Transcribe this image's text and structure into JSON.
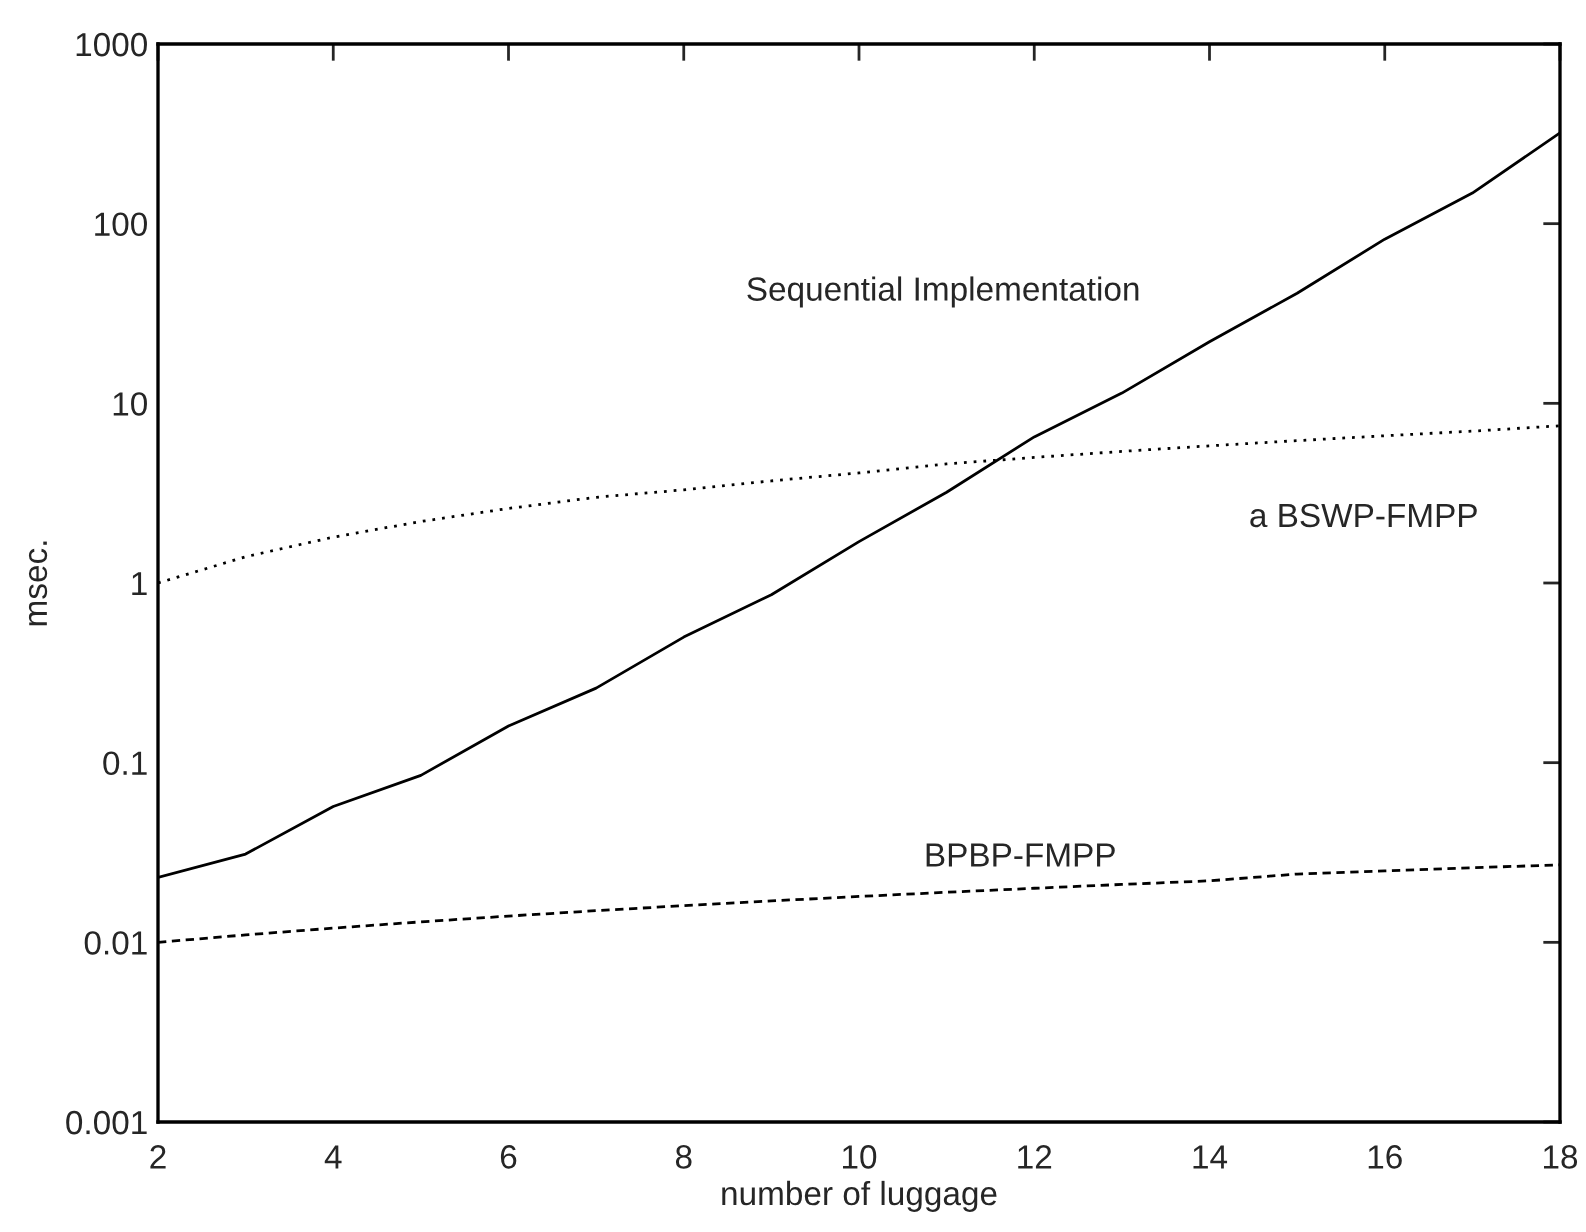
{
  "chart_data": {
    "type": "line",
    "xlabel": "number of luggage",
    "ylabel": "msec.",
    "log": "y",
    "x": [
      2,
      3,
      4,
      5,
      6,
      7,
      8,
      9,
      10,
      11,
      12,
      13,
      14,
      15,
      16,
      17,
      18
    ],
    "xlim": [
      2,
      18
    ],
    "xticks": [
      2,
      4,
      6,
      8,
      10,
      12,
      14,
      16,
      18
    ],
    "ylim": [
      0.001,
      1000
    ],
    "yticks": [
      0.001,
      0.01,
      0.1,
      1,
      10,
      100,
      1000
    ],
    "grid": false,
    "legend": false,
    "marker": "none",
    "series": [
      {
        "name": "Sequential Implementation",
        "color": "#000000",
        "line_style": "solid",
        "values": [
          0.023,
          0.031,
          0.057,
          0.085,
          0.16,
          0.26,
          0.5,
          0.86,
          1.7,
          3.2,
          6.5,
          11.4,
          22,
          41,
          82,
          148,
          320
        ]
      },
      {
        "name": "a BSWP-FMPP",
        "color": "#000000",
        "line_style": "dotted",
        "values": [
          1.0,
          1.4,
          1.8,
          2.2,
          2.6,
          3.0,
          3.3,
          3.7,
          4.1,
          4.6,
          5.0,
          5.4,
          5.8,
          6.2,
          6.6,
          7.0,
          7.5
        ]
      },
      {
        "name": "BPBP-FMPP",
        "color": "#000000",
        "line_style": "dashed",
        "values": [
          0.01,
          0.011,
          0.012,
          0.013,
          0.014,
          0.015,
          0.016,
          0.017,
          0.018,
          0.019,
          0.02,
          0.021,
          0.022,
          0.024,
          0.025,
          0.026,
          0.027
        ]
      }
    ]
  }
}
